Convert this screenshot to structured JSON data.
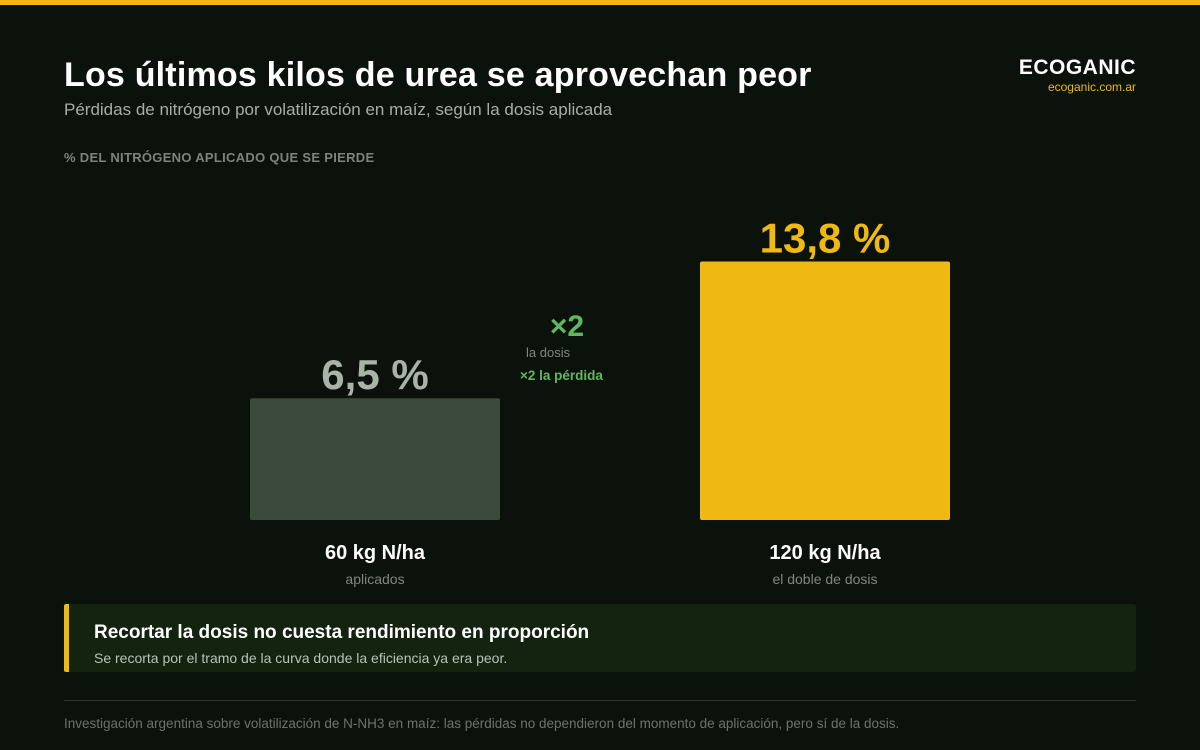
{
  "header": {
    "title": "Los últimos kilos de urea se aprovechan peor",
    "subtitle": "Pérdidas de nitrógeno por volatilización en maíz, según la dosis aplicada"
  },
  "brand": {
    "name": "ECOGANIC",
    "url": "ecoganic.com.ar"
  },
  "colors": {
    "accent": "#f0b912",
    "bar_low": "#3b4a3b",
    "low_label": "#a9b4a9",
    "green": "#5fb85f",
    "background": "#0b120c"
  },
  "chart_data": {
    "type": "bar",
    "ylabel": "% DEL NITRÓGENO APLICADO QUE SE PIERDE",
    "ylim": [
      0,
      15
    ],
    "grid": false,
    "categories": [
      "60 kg N/ha",
      "120 kg N/ha"
    ],
    "category_notes": [
      "aplicados",
      "el doble de dosis"
    ],
    "values": [
      6.5,
      13.8
    ],
    "value_labels": [
      "6,5 %",
      "13,8 %"
    ],
    "annotations": {
      "multiplier": "×2",
      "dose_note": "la dosis",
      "loss_note": "×2 la pérdida"
    }
  },
  "callout": {
    "title": "Recortar la dosis no cuesta rendimiento en proporción",
    "text": "Se recorta por el tramo de la curva donde la eficiencia ya era peor."
  },
  "footnote": "Investigación argentina sobre volatilización de N-NH3 en maíz: las pérdidas no dependieron del momento de aplicación, pero sí de la dosis."
}
